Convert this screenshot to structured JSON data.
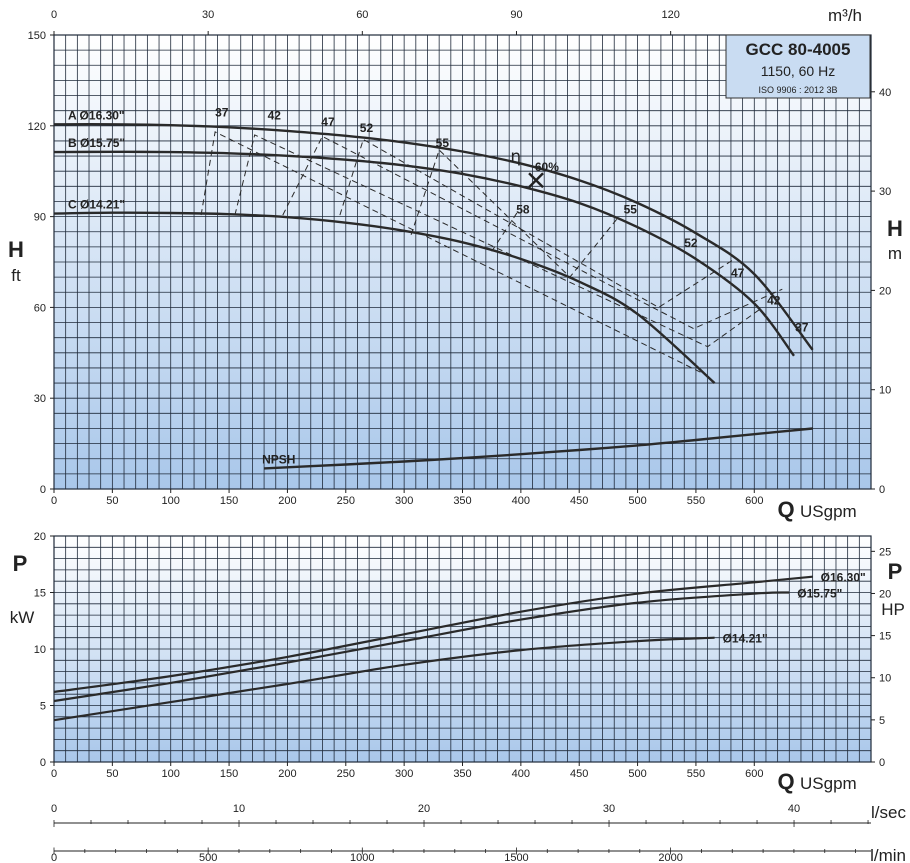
{
  "title_box": {
    "model": "GCC 80-4005",
    "speed": "1150, 60 Hz",
    "standard": "ISO 9906 : 2012 3B",
    "background": "#c9dcf2"
  },
  "colors": {
    "grid_line": "#1f2a3a",
    "curve": "#2a2a2a",
    "bg_top": "#ffffff",
    "bg_bottom": "#a9c7ea"
  },
  "chart_data": [
    {
      "type": "line",
      "name": "head",
      "xlabel": "Q USgpm",
      "x_letter": "Q",
      "x_unit": "USgpm",
      "x2_unit": "m³/h",
      "y_letter": "H",
      "y_unit": "ft",
      "y2_letter": "H",
      "y2_unit": "m",
      "xlim": [
        0,
        700
      ],
      "ylim": [
        0,
        150
      ],
      "xticks": [
        0,
        50,
        100,
        150,
        200,
        250,
        300,
        350,
        400,
        450,
        500,
        550,
        600
      ],
      "yticks": [
        0,
        30,
        60,
        90,
        120,
        150
      ],
      "x2lim": [
        0,
        158.99
      ],
      "x2ticks": [
        0,
        30,
        60,
        90,
        120
      ],
      "y2lim": [
        0,
        45.72
      ],
      "y2ticks": [
        0,
        10,
        20,
        30,
        40
      ],
      "series": [
        {
          "name": "A Ø16.30\"",
          "x": [
            0,
            50,
            100,
            150,
            200,
            250,
            300,
            350,
            400,
            450,
            500,
            550,
            600,
            650
          ],
          "y": [
            120.5,
            120.5,
            120.2,
            119.5,
            118.3,
            116.7,
            114.5,
            111.5,
            107.5,
            102,
            94.5,
            84.5,
            71,
            46
          ]
        },
        {
          "name": "B Ø15.75\"",
          "x": [
            0,
            50,
            100,
            150,
            200,
            250,
            300,
            350,
            400,
            450,
            500,
            550,
            600,
            634
          ],
          "y": [
            111.3,
            111.4,
            111.3,
            110.9,
            110.1,
            108.8,
            106.9,
            104.1,
            100,
            94.5,
            86.5,
            76,
            61.3,
            44
          ]
        },
        {
          "name": "C Ø14.21\"",
          "x": [
            0,
            50,
            100,
            150,
            200,
            250,
            300,
            350,
            400,
            450,
            500,
            566
          ],
          "y": [
            91,
            91.3,
            91.2,
            90.8,
            89.8,
            88,
            85.3,
            81.5,
            76,
            68.5,
            57.8,
            35
          ]
        },
        {
          "name": "NPSH",
          "x": [
            180,
            250,
            300,
            350,
            400,
            450,
            500,
            550,
            600,
            650
          ],
          "y": [
            6.8,
            8.1,
            9.1,
            10.2,
            11.5,
            12.9,
            14.4,
            16.2,
            18.1,
            20
          ]
        }
      ],
      "efficiency_label": "η",
      "efficiency_lines": [
        {
          "label": "37",
          "x": [
            126,
            138,
            557
          ],
          "y": [
            90.5,
            118,
            38
          ]
        },
        {
          "label": "42",
          "x": [
            155,
            172,
            560,
            607
          ],
          "y": [
            90.5,
            117,
            47,
            60
          ]
        },
        {
          "label": "47",
          "x": [
            196,
            230,
            548,
            624
          ],
          "y": [
            90.5,
            116.5,
            53,
            66
          ]
        },
        {
          "label": "52",
          "x": [
            245,
            265,
            518,
            583
          ],
          "y": [
            90.5,
            115.5,
            60,
            76
          ]
        },
        {
          "label": "55",
          "x": [
            306,
            330,
            442,
            484
          ],
          "y": [
            84,
            112,
            70,
            90
          ]
        },
        {
          "label": "58",
          "x": [
            375,
            398
          ],
          "y": [
            78.5,
            92
          ]
        }
      ],
      "efficiency_labels": [
        {
          "text": "37",
          "x": 138,
          "y": 123
        },
        {
          "text": "42",
          "x": 183,
          "y": 122
        },
        {
          "text": "47",
          "x": 229,
          "y": 120
        },
        {
          "text": "52",
          "x": 262,
          "y": 118
        },
        {
          "text": "55",
          "x": 327,
          "y": 113
        },
        {
          "text": "58",
          "x": 396,
          "y": 91
        },
        {
          "text": "60%",
          "x": 412,
          "y": 105
        },
        {
          "text": "55",
          "x": 488,
          "y": 91
        },
        {
          "text": "52",
          "x": 540,
          "y": 80
        },
        {
          "text": "47",
          "x": 580,
          "y": 70
        },
        {
          "text": "42",
          "x": 611,
          "y": 61
        },
        {
          "text": "37",
          "x": 635,
          "y": 52
        }
      ],
      "bep_marker": {
        "x": 413,
        "y": 102
      }
    },
    {
      "type": "line",
      "name": "power",
      "xlabel": "Q USgpm",
      "x_letter": "Q",
      "x_unit": "USgpm",
      "y_letter": "P",
      "y_unit": "kW",
      "y2_letter": "P",
      "y2_unit": "HP",
      "xlim": [
        0,
        700
      ],
      "ylim": [
        0,
        20
      ],
      "xticks": [
        0,
        50,
        100,
        150,
        200,
        250,
        300,
        350,
        400,
        450,
        500,
        550,
        600
      ],
      "yticks": [
        0,
        5,
        10,
        15,
        20
      ],
      "y2lim": [
        0,
        26.82
      ],
      "y2ticks": [
        0,
        5,
        10,
        15,
        20,
        25
      ],
      "series": [
        {
          "name": "Ø16.30\"",
          "x": [
            0,
            100,
            200,
            300,
            400,
            500,
            600,
            650
          ],
          "y": [
            6.2,
            7.6,
            9.3,
            11.3,
            13.3,
            14.9,
            15.9,
            16.4
          ]
        },
        {
          "name": "Ø15.75\"",
          "x": [
            0,
            100,
            200,
            300,
            400,
            500,
            600,
            630
          ],
          "y": [
            5.4,
            7.0,
            8.8,
            10.7,
            12.6,
            14.1,
            14.9,
            15.0
          ]
        },
        {
          "name": "Ø14.21\"",
          "x": [
            0,
            100,
            200,
            300,
            400,
            500,
            566
          ],
          "y": [
            3.7,
            5.3,
            6.9,
            8.6,
            9.9,
            10.7,
            11.0
          ]
        }
      ]
    }
  ],
  "secondary_scales": [
    {
      "name": "l/sec",
      "unit": "l/sec",
      "lim": [
        0,
        44.16
      ],
      "ticks": [
        0,
        10,
        20,
        30,
        40
      ],
      "minor": 2
    },
    {
      "name": "l/min",
      "unit": "l/min",
      "lim": [
        0,
        2650
      ],
      "ticks": [
        0,
        500,
        1000,
        1500,
        2000
      ],
      "minor": 100
    }
  ]
}
